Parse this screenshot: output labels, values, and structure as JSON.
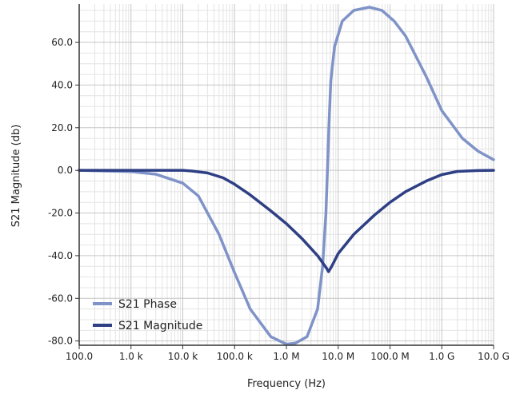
{
  "chart_data": {
    "type": "line",
    "title": "",
    "xlabel": "Frequency (Hz)",
    "ylabel": "S21 Magnitude (db)",
    "x_scale": "log",
    "xlim": [
      100,
      10000000000
    ],
    "ylim": [
      -82,
      78
    ],
    "grid": true,
    "legend_position": "bottom-left",
    "x_ticks": [
      {
        "value": 100,
        "label": "100.0"
      },
      {
        "value": 1000,
        "label": "1.0 k"
      },
      {
        "value": 10000,
        "label": "10.0 k"
      },
      {
        "value": 100000,
        "label": "100.0 k"
      },
      {
        "value": 1000000,
        "label": "1.0 M"
      },
      {
        "value": 10000000,
        "label": "10.0 M"
      },
      {
        "value": 100000000,
        "label": "100.0 M"
      },
      {
        "value": 1000000000,
        "label": "1.0 G"
      },
      {
        "value": 10000000000,
        "label": "10.0 G"
      }
    ],
    "y_ticks": [
      {
        "value": 60,
        "label": "60.0"
      },
      {
        "value": 40,
        "label": "40.0"
      },
      {
        "value": 20,
        "label": "20.0"
      },
      {
        "value": 0,
        "label": "0.0"
      },
      {
        "value": -20,
        "label": "-20.0"
      },
      {
        "value": -40,
        "label": "-40.0"
      },
      {
        "value": -60,
        "label": "-60.0"
      },
      {
        "value": -80,
        "label": "-80.0"
      }
    ],
    "series": [
      {
        "name": "S21 Phase",
        "color": "#7f93c8",
        "points": [
          [
            100,
            0
          ],
          [
            1000,
            -0.6
          ],
          [
            3000,
            -1.8
          ],
          [
            10000,
            -6
          ],
          [
            20000,
            -12
          ],
          [
            50000,
            -30
          ],
          [
            100000,
            -48
          ],
          [
            200000,
            -65
          ],
          [
            500000,
            -78
          ],
          [
            1000000,
            -81.5
          ],
          [
            1500000,
            -81
          ],
          [
            2500000,
            -78
          ],
          [
            4000000,
            -65
          ],
          [
            5000000,
            -45
          ],
          [
            5800000,
            -20
          ],
          [
            6200000,
            0
          ],
          [
            6600000,
            20
          ],
          [
            7200000,
            42
          ],
          [
            8500000,
            58
          ],
          [
            12000000,
            70
          ],
          [
            20000000,
            75
          ],
          [
            40000000,
            76.5
          ],
          [
            70000000,
            75
          ],
          [
            120000000,
            70
          ],
          [
            200000000,
            63
          ],
          [
            500000000,
            44
          ],
          [
            1000000000,
            28
          ],
          [
            2500000000,
            15
          ],
          [
            5000000000,
            9
          ],
          [
            10000000000,
            5
          ]
        ]
      },
      {
        "name": "S21 Magnitude",
        "color": "#2e3f84",
        "points": [
          [
            100,
            0
          ],
          [
            10000,
            0
          ],
          [
            15000,
            -0.3
          ],
          [
            30000,
            -1.2
          ],
          [
            60000,
            -3.5
          ],
          [
            100000,
            -6.5
          ],
          [
            200000,
            -11.5
          ],
          [
            500000,
            -19
          ],
          [
            1000000,
            -25
          ],
          [
            2000000,
            -32
          ],
          [
            4000000,
            -40
          ],
          [
            6000000,
            -46
          ],
          [
            6500000,
            -47.5
          ],
          [
            7500000,
            -45
          ],
          [
            10000000,
            -39
          ],
          [
            20000000,
            -30
          ],
          [
            50000000,
            -21
          ],
          [
            100000000,
            -15
          ],
          [
            200000000,
            -10
          ],
          [
            500000000,
            -5
          ],
          [
            1000000000,
            -2
          ],
          [
            2000000000,
            -0.5
          ],
          [
            5000000000,
            -0.1
          ],
          [
            10000000000,
            0
          ]
        ]
      }
    ]
  }
}
